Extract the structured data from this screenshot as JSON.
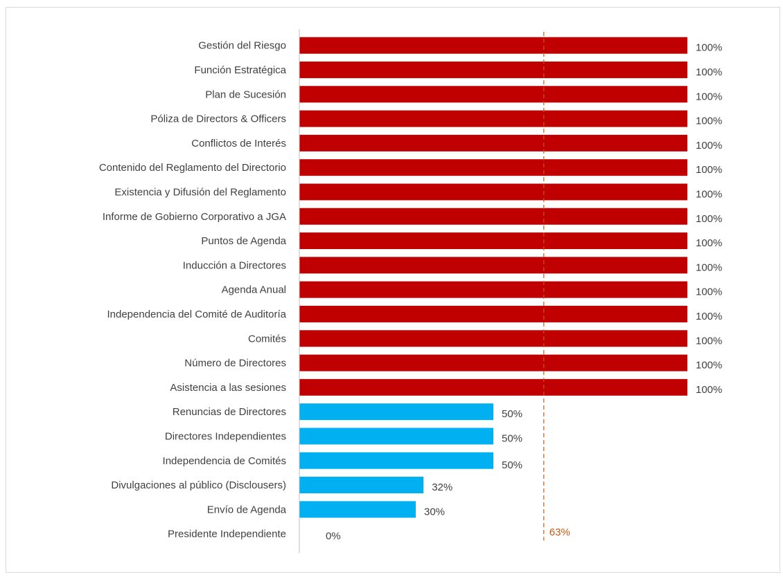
{
  "chart_data": {
    "type": "bar",
    "orientation": "horizontal",
    "categories": [
      "Gestión del Riesgo",
      "Función Estratégica",
      "Plan de Sucesión",
      "Póliza de Directors & Officers",
      "Conflictos de Interés",
      "Contenido del Reglamento del Directorio",
      "Existencia y Difusión del Reglamento",
      "Informe de Gobierno Corporativo a JGA",
      "Puntos de Agenda",
      "Inducción a Directores",
      "Agenda Anual",
      "Independencia del Comité de Auditoría",
      "Comités",
      "Número de Directores",
      "Asistencia a las sesiones",
      "Renuncias de Directores",
      "Directores Independientes",
      "Independencia de Comités",
      "Divulgaciones al público (Disclousers)",
      "Envío de Agenda",
      "Presidente Independiente"
    ],
    "values": [
      100,
      100,
      100,
      100,
      100,
      100,
      100,
      100,
      100,
      100,
      100,
      100,
      100,
      100,
      100,
      50,
      50,
      50,
      32,
      30,
      0
    ],
    "value_labels": [
      "100%",
      "100%",
      "100%",
      "100%",
      "100%",
      "100%",
      "100%",
      "100%",
      "100%",
      "100%",
      "100%",
      "100%",
      "100%",
      "100%",
      "100%",
      "50%",
      "50%",
      "50%",
      "32%",
      "30%",
      "0%"
    ],
    "xlim": [
      0,
      100
    ],
    "average_line": {
      "value": 63,
      "label": "63%",
      "color": "#c55a11",
      "style": "dashed"
    },
    "colors": {
      "full": "#c00000",
      "partial": "#00b0f0",
      "axis": "#bfbfbf",
      "text": "#404040"
    },
    "grid": false,
    "legend": "none"
  }
}
